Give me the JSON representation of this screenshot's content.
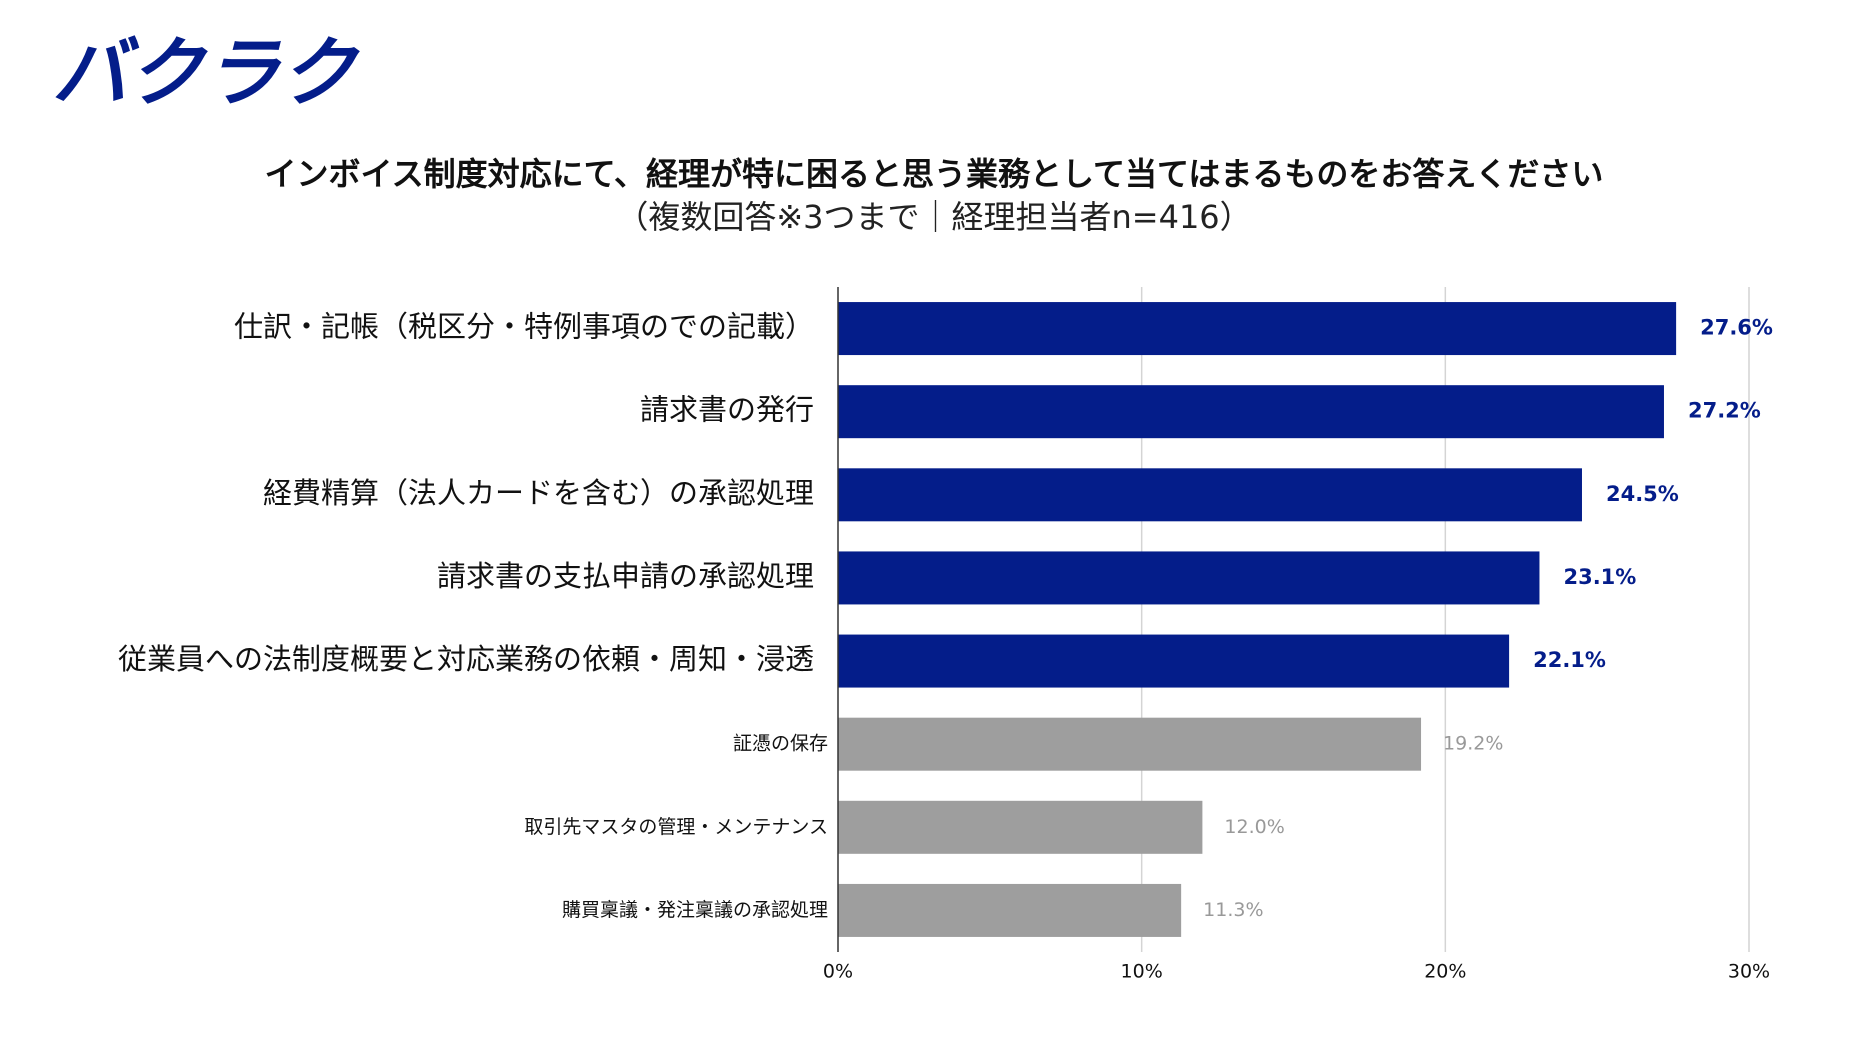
{
  "logo": "バクラク",
  "chart_data": {
    "type": "bar",
    "orientation": "horizontal",
    "title": "インボイス制度対応にて、経理が特に困ると思う業務として当てはまるものをお答えください",
    "subtitle": "（複数回答※3つまで｜経理担当者n=416）",
    "categories": [
      "仕訳・記帳（税区分・特例事項のでの記載）",
      "請求書の発行",
      "経費精算（法人カードを含む）の承認処理",
      "請求書の支払申請の承認処理",
      "従業員への法制度概要と対応業務の依頼・周知・浸透",
      "証憑の保存",
      "取引先マスタの管理・メンテナンス",
      "購買稟議・発注稟議の承認処理"
    ],
    "values": [
      27.6,
      27.2,
      24.5,
      23.1,
      22.1,
      19.2,
      12.0,
      11.3
    ],
    "value_labels": [
      "27.6%",
      "27.2%",
      "24.5%",
      "23.1%",
      "22.1%",
      "19.2%",
      "12.0%",
      "11.3%"
    ],
    "colors": [
      "#041d8a",
      "#041d8a",
      "#041d8a",
      "#041d8a",
      "#041d8a",
      "#9e9e9e",
      "#9e9e9e",
      "#9e9e9e"
    ],
    "xlim": [
      0,
      30
    ],
    "xticks": [
      {
        "value": 0,
        "label": "0%"
      },
      {
        "value": 10,
        "label": "10%"
      },
      {
        "value": 20,
        "label": "20%"
      },
      {
        "value": 30,
        "label": "30%"
      }
    ],
    "grid": true
  }
}
